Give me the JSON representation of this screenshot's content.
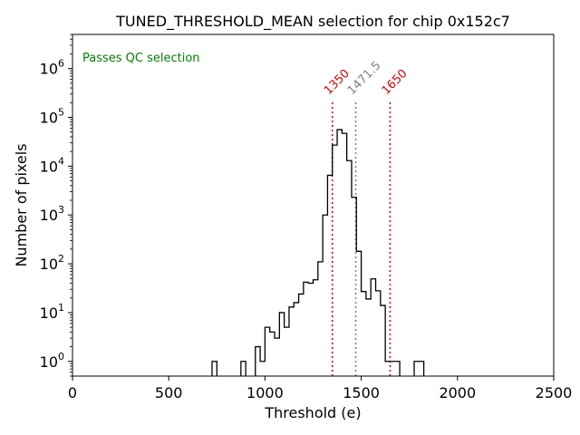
{
  "chart_data": {
    "type": "histogram",
    "title": "TUNED_THRESHOLD_MEAN selection for chip 0x152c7",
    "xlabel": "Threshold (e)",
    "ylabel": "Number of pixels",
    "xlim": [
      0,
      2500
    ],
    "ylim": [
      0.5,
      5000000
    ],
    "yscale": "log",
    "grid": false,
    "xticks": [
      0,
      500,
      1000,
      1500,
      2000,
      2500
    ],
    "xtick_labels": [
      "0",
      "500",
      "1000",
      "1500",
      "2000",
      "2500"
    ],
    "yticks": [
      1,
      10,
      100,
      1000,
      10000,
      100000,
      1000000
    ],
    "ytick_labels": [
      {
        "base": "10",
        "exp": "0"
      },
      {
        "base": "10",
        "exp": "1"
      },
      {
        "base": "10",
        "exp": "2"
      },
      {
        "base": "10",
        "exp": "3"
      },
      {
        "base": "10",
        "exp": "4"
      },
      {
        "base": "10",
        "exp": "5"
      },
      {
        "base": "10",
        "exp": "6"
      }
    ],
    "bin_width": 25,
    "bins": [
      {
        "x": 725,
        "y": 1
      },
      {
        "x": 875,
        "y": 1
      },
      {
        "x": 950,
        "y": 2
      },
      {
        "x": 975,
        "y": 1
      },
      {
        "x": 1000,
        "y": 5
      },
      {
        "x": 1025,
        "y": 4
      },
      {
        "x": 1050,
        "y": 3
      },
      {
        "x": 1075,
        "y": 10
      },
      {
        "x": 1100,
        "y": 5
      },
      {
        "x": 1125,
        "y": 13
      },
      {
        "x": 1150,
        "y": 16
      },
      {
        "x": 1175,
        "y": 24
      },
      {
        "x": 1200,
        "y": 42
      },
      {
        "x": 1225,
        "y": 40
      },
      {
        "x": 1250,
        "y": 47
      },
      {
        "x": 1275,
        "y": 110
      },
      {
        "x": 1300,
        "y": 1000
      },
      {
        "x": 1325,
        "y": 6500
      },
      {
        "x": 1350,
        "y": 27000
      },
      {
        "x": 1375,
        "y": 56000
      },
      {
        "x": 1400,
        "y": 47000
      },
      {
        "x": 1425,
        "y": 13000
      },
      {
        "x": 1450,
        "y": 2300
      },
      {
        "x": 1475,
        "y": 180
      },
      {
        "x": 1500,
        "y": 27
      },
      {
        "x": 1525,
        "y": 19
      },
      {
        "x": 1550,
        "y": 49
      },
      {
        "x": 1575,
        "y": 28
      },
      {
        "x": 1600,
        "y": 14
      },
      {
        "x": 1625,
        "y": 1
      },
      {
        "x": 1650,
        "y": 1
      },
      {
        "x": 1675,
        "y": 1
      },
      {
        "x": 1775,
        "y": 1
      },
      {
        "x": 1800,
        "y": 1
      }
    ],
    "lines": [
      {
        "x": 1350,
        "label": "1350",
        "color": "#e00000"
      },
      {
        "x": 1471.5,
        "label": "1471.5",
        "color": "#808080"
      },
      {
        "x": 1650,
        "label": "1650",
        "color": "#e00000"
      }
    ],
    "annotation": {
      "text": "Passes QC selection",
      "color": "#008000",
      "position": "top-left"
    }
  }
}
